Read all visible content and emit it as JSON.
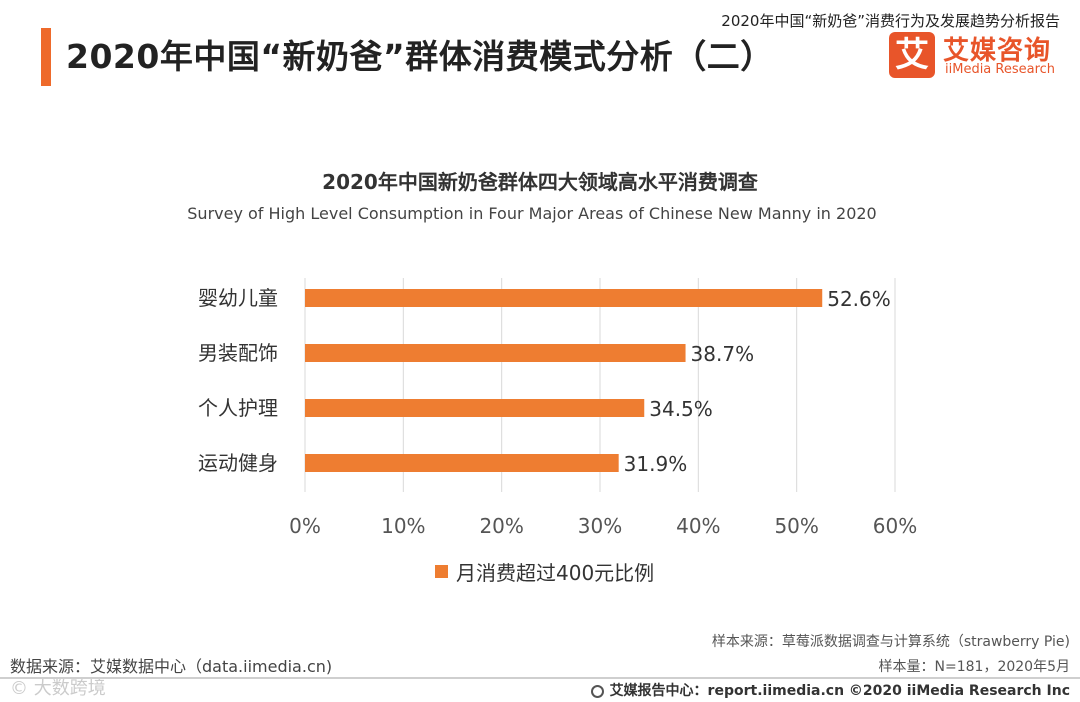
{
  "header": {
    "report_title": "2020年中国“新奶爸”消费行为及发展趋势分析报告",
    "page_title": "2020年中国“新奶爸”群体消费模式分析（二）"
  },
  "logo": {
    "mark": "艾",
    "name_cn": "艾媒咨询",
    "name_en": "iiMedia Research"
  },
  "chart_data": {
    "type": "bar",
    "orientation": "horizontal",
    "title": "2020年中国新奶爸群体四大领域高水平消费调查",
    "subtitle": "Survey of High Level Consumption in Four Major Areas of Chinese New Manny in 2020",
    "categories": [
      "婴幼儿童",
      "男装配饰",
      "个人护理",
      "运动健身"
    ],
    "series": [
      {
        "name": "月消费超过400元比例",
        "values": [
          52.6,
          38.7,
          34.5,
          31.9
        ],
        "color": "#ee7d31"
      }
    ],
    "value_labels": [
      "52.6%",
      "38.7%",
      "34.5%",
      "31.9%"
    ],
    "xlim": [
      0,
      60
    ],
    "ticks": [
      "0%",
      "10%",
      "20%",
      "30%",
      "40%",
      "50%",
      "60%"
    ],
    "gridlines": true,
    "legend_position": "bottom"
  },
  "footer": {
    "sample_source": "样本来源：草莓派数据调查与计算系统（strawberry Pie)",
    "sample_size": "样本量：N=181，2020年5月",
    "data_source": "数据来源：艾媒数据中心（data.iimedia.cn)",
    "copyright": "艾媒报告中心：report.iimedia.cn  ©2020  iiMedia Research  Inc",
    "watermark": "© 大数跨境"
  }
}
